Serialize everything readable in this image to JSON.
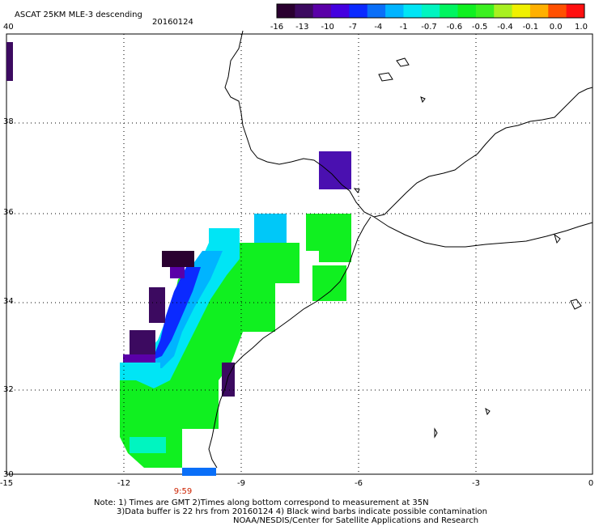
{
  "header": {
    "title": "ASCAT 25KM MLE-3 descending",
    "date": "20160124"
  },
  "colorbar": {
    "colors": [
      "#2a0030",
      "#3c0a60",
      "#5a00a8",
      "#4400e0",
      "#0b2aff",
      "#0a6ff8",
      "#00b4ff",
      "#00e5f5",
      "#00f5c0",
      "#00f560",
      "#10f020",
      "#3cf020",
      "#a8f020",
      "#f0f000",
      "#ffb000",
      "#ff5000",
      "#ff1010"
    ],
    "labels": [
      "-16",
      "-13",
      "-10",
      "-7",
      "-4",
      "-1",
      "-0.7",
      "-0.6",
      "-0.5",
      "-0.4",
      "-0.1",
      "0.0",
      "1.0"
    ]
  },
  "axes": {
    "x_ticks": [
      "-15",
      "-12",
      "-9",
      "-6",
      "-3",
      "0"
    ],
    "y_ticks": [
      "40",
      "38",
      "36",
      "34",
      "32",
      "30"
    ]
  },
  "time_label": "9:59",
  "notes": {
    "line1": "Note: 1) Times are GMT 2)Times along bottom correspond to measurement at 35N",
    "line2": "3)Data buffer is 22 hrs from 20160124 4) Black wind barbs indicate possible contamination",
    "line3": "NOAA/NESDIS/Center for Satellite Applications and Research"
  }
}
